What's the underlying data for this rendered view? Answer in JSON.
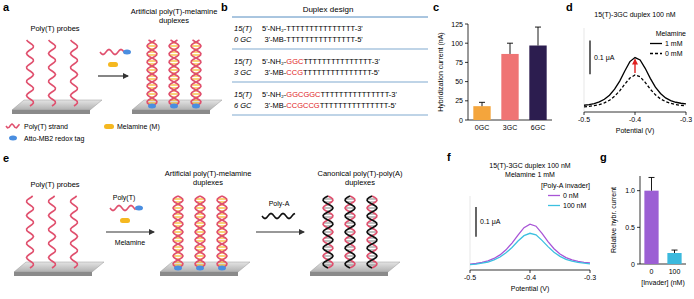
{
  "chart_data": [
    {
      "panel": "c",
      "type": "bar",
      "y_label": "Hybridization current (nA)",
      "categories": [
        "0GC",
        "3GC",
        "6GC"
      ],
      "values": [
        18,
        86,
        97
      ],
      "errors": [
        5,
        14,
        24
      ],
      "colors": [
        "#f4a53c",
        "#ef7474",
        "#2c1d4f"
      ],
      "ylim": [
        0,
        125
      ],
      "yticks": [
        0,
        25,
        50,
        75,
        100,
        125
      ]
    },
    {
      "panel": "d",
      "type": "line",
      "title": "15(T)-3GC duplex 100 nM",
      "x_label": "Potential (V)",
      "x": [
        -0.5,
        -0.49,
        -0.48,
        -0.47,
        -0.46,
        -0.45,
        -0.44,
        -0.43,
        -0.42,
        -0.41,
        -0.4,
        -0.39,
        -0.38,
        -0.37,
        -0.36,
        -0.35,
        -0.34,
        -0.33,
        -0.32,
        -0.31,
        -0.3
      ],
      "series": [
        {
          "name": "1 mM",
          "color": "#000000",
          "line_style": "solid",
          "values": [
            0.02,
            0.022,
            0.025,
            0.03,
            0.038,
            0.05,
            0.068,
            0.092,
            0.122,
            0.15,
            0.162,
            0.155,
            0.13,
            0.1,
            0.074,
            0.055,
            0.042,
            0.034,
            0.029,
            0.026,
            0.024
          ]
        },
        {
          "name": "0 mM",
          "color": "#000000",
          "line_style": "dashed",
          "values": [
            0.015,
            0.017,
            0.019,
            0.022,
            0.027,
            0.035,
            0.047,
            0.063,
            0.083,
            0.101,
            0.11,
            0.105,
            0.088,
            0.068,
            0.051,
            0.039,
            0.031,
            0.026,
            0.022,
            0.02,
            0.019
          ]
        }
      ],
      "legend_title": "Melamine",
      "legend": "upper right",
      "xlim": [
        -0.5,
        -0.3
      ],
      "xticks": [
        -0.5,
        -0.4,
        -0.3
      ],
      "ylim": [
        0,
        0.25
      ],
      "tick_labels": "x",
      "scale_bar": {
        "value": 0.1,
        "label": "0.1 μA"
      }
    },
    {
      "panel": "f",
      "type": "line",
      "title": "15(T)-3GC duplex 100 nM",
      "subtitle": "Melamine 1 mM",
      "x_label": "Potential (V)",
      "x": [
        -0.5,
        -0.49,
        -0.48,
        -0.47,
        -0.46,
        -0.45,
        -0.44,
        -0.43,
        -0.42,
        -0.41,
        -0.4,
        -0.39,
        -0.38,
        -0.37,
        -0.36,
        -0.35,
        -0.34,
        -0.33,
        -0.32,
        -0.31,
        -0.3
      ],
      "series": [
        {
          "name": "0 nM",
          "color": "#a855d6",
          "line_style": "solid",
          "values": [
            0.02,
            0.022,
            0.026,
            0.031,
            0.039,
            0.051,
            0.068,
            0.091,
            0.118,
            0.143,
            0.155,
            0.148,
            0.124,
            0.096,
            0.072,
            0.054,
            0.042,
            0.034,
            0.029,
            0.026,
            0.024
          ]
        },
        {
          "name": "100 nM",
          "color": "#3cc0e0",
          "line_style": "solid",
          "values": [
            0.018,
            0.02,
            0.023,
            0.027,
            0.034,
            0.044,
            0.058,
            0.076,
            0.098,
            0.116,
            0.124,
            0.119,
            0.1,
            0.079,
            0.06,
            0.046,
            0.036,
            0.03,
            0.026,
            0.023,
            0.021
          ]
        }
      ],
      "legend_title": "[Poly-A invader]",
      "legend": "upper right",
      "xlim": [
        -0.5,
        -0.3
      ],
      "xticks": [
        -0.5,
        -0.4,
        -0.3
      ],
      "ylim": [
        0,
        0.25
      ],
      "tick_labels": "x",
      "scale_bar": {
        "value": 0.1,
        "label": "0.1 μA"
      }
    },
    {
      "panel": "g",
      "type": "bar",
      "y_label": "Relative hybr. current",
      "x_label": "[Invader] (nM)",
      "categories": [
        "0",
        "100"
      ],
      "values": [
        1.0,
        0.15
      ],
      "errors": [
        0.18,
        0.04
      ],
      "colors": [
        "#9c5fd4",
        "#3cb9dd"
      ],
      "ylim": [
        0,
        1.2
      ],
      "yticks": [
        0,
        0.5,
        {
          "value": 1,
          "label": "1.0"
        }
      ]
    }
  ],
  "diagrams": {
    "a": {
      "panel": "a",
      "left_label": "Poly(T) probes",
      "right_label": "Artificial poly(T)-melamine duplexes",
      "key_items": [
        "Poly(T) strand",
        "Atto-MB2 redox tag",
        "Melamine (M)"
      ]
    },
    "b": {
      "panel": "b",
      "title": "Duplex design",
      "rows": [
        {
          "label": "15(T)",
          "sub": "0 GC",
          "top": {
            "prefix": "5'-NH₂-",
            "rest": "TTTTTTTTTTTTTTT-3'"
          },
          "bottom": {
            "prefix": "3'-MB-",
            "rest": "TTTTTTTTTTTTTTT-5'"
          }
        },
        {
          "label": "15(T)",
          "sub": "3 GC",
          "top": {
            "prefix": "5'-NH₂-",
            "gc": "GGC",
            "rest": "TTTTTTTTTTTTTTT-3'"
          },
          "bottom": {
            "prefix": "3'-MB-",
            "gc": "CCG",
            "rest": "TTTTTTTTTTTTTTT-5'"
          }
        },
        {
          "label": "15(T)",
          "sub": "6 GC",
          "top": {
            "prefix": "5'-NH₂-",
            "gc": "GGCGGC",
            "rest": "TTTTTTTTTTTTTTT-3'"
          },
          "bottom": {
            "prefix": "3'-MB-",
            "gc": "CCGCCG",
            "rest": "TTTTTTTTTTTTTTT-5'"
          }
        }
      ]
    },
    "e": {
      "panel": "e",
      "stage_labels": [
        "Poly(T) probes",
        "Artificial poly(T)-melamine duplexes",
        "Canonical poly(T)-poly(A) duplexes"
      ],
      "reagent_labels": [
        "Poly(T)",
        "Melamine",
        "Poly-A"
      ]
    }
  }
}
